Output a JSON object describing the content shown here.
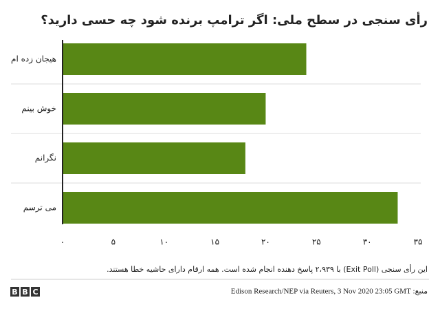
{
  "chart_data": {
    "type": "bar",
    "orientation": "horizontal",
    "title": "رأی سنجی در سطح ملی: اگر ترامپ برنده شود چه حسی دارید؟",
    "categories": [
      "هیجان زده ام",
      "خوش بینم",
      "نگرانم",
      "می ترسم"
    ],
    "values": [
      24,
      20,
      18,
      33
    ],
    "color": "#588715",
    "xlim": [
      0,
      35
    ],
    "xticks": [
      {
        "value": 0,
        "label": "۰"
      },
      {
        "value": 5,
        "label": "۵"
      },
      {
        "value": 10,
        "label": "۱۰"
      },
      {
        "value": 15,
        "label": "۱۵"
      },
      {
        "value": 20,
        "label": "۲۰"
      },
      {
        "value": 25,
        "label": "۲۵"
      },
      {
        "value": 30,
        "label": "۳۰"
      },
      {
        "value": 35,
        "label": "۳۵"
      }
    ],
    "note": "این رأی سنجی (Exit Poll) با ۲،۹۳۹ پاسخ دهنده انجام شده است. همه ارقام دارای حاشیه خطا هستند.",
    "source": "منبع: Edison Research/NEP via Reuters, 3 Nov 2020 23:05 GMT",
    "logo": [
      "B",
      "B",
      "C"
    ]
  }
}
